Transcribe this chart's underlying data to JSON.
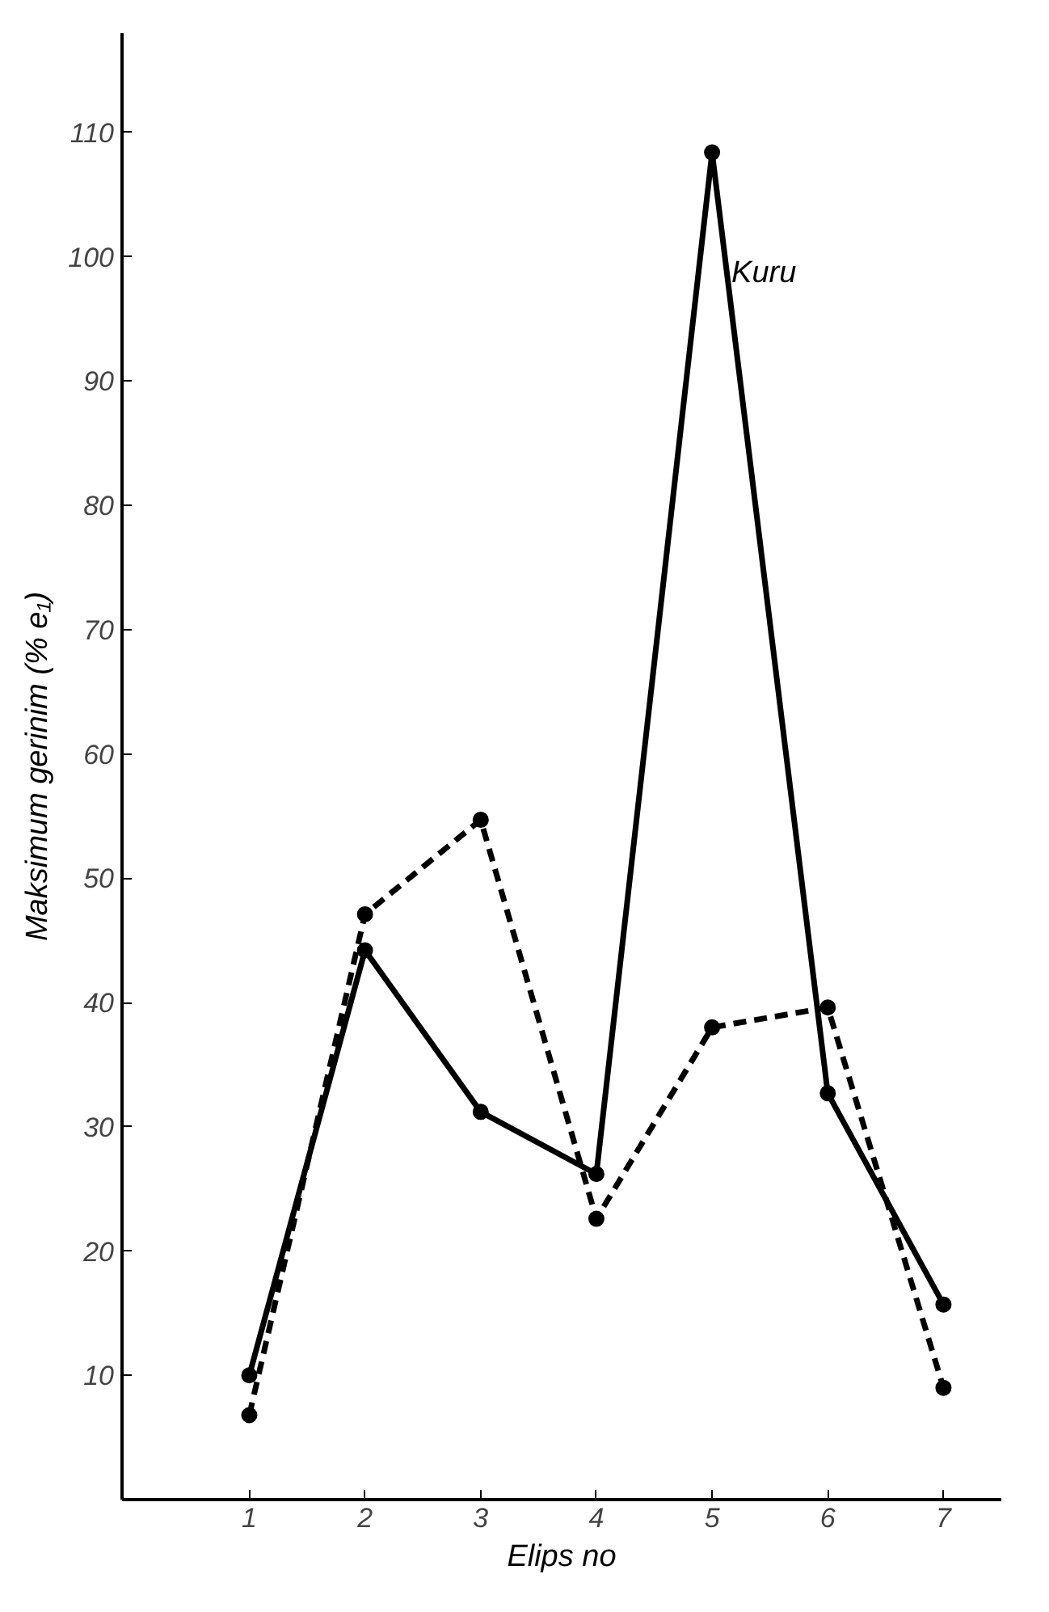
{
  "chart_data": {
    "type": "line",
    "xlabel": "Elips no",
    "ylabel": "Maksimum gerinim (% e₁)",
    "x": [
      1,
      2,
      3,
      4,
      5,
      6,
      7
    ],
    "xlim": [
      -0.1,
      7.5
    ],
    "xticks": [
      1,
      2,
      3,
      4,
      5,
      6,
      7
    ],
    "ylim": [
      0,
      118
    ],
    "yticks": [
      10,
      20,
      30,
      40,
      50,
      60,
      70,
      80,
      90,
      100,
      110
    ],
    "marker": "circle",
    "grid": false,
    "series": [
      {
        "name": "Kuru",
        "color": "#000000",
        "line_style": "solid",
        "values": [
          10,
          44.2,
          31.2,
          26.2,
          108.4,
          32.7,
          15.7
        ]
      },
      {
        "color": "#000000",
        "line_style": "dashed",
        "values": [
          6.8,
          47.1,
          54.7,
          22.6,
          38,
          39.6,
          9
        ]
      }
    ]
  }
}
